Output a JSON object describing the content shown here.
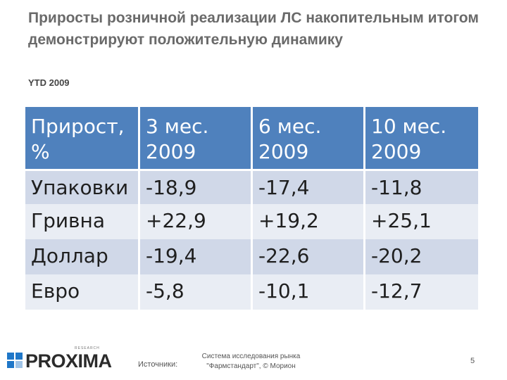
{
  "slide": {
    "title": "Приросты розничной реализации ЛС накопительным итогом демонстрируют положительную динамику",
    "subtitle": "YTD 2009"
  },
  "table": {
    "header": [
      {
        "line1": "Прирост,",
        "line2": "%"
      },
      {
        "line1": "3 мес.",
        "line2": "2009"
      },
      {
        "line1": "6 мес.",
        "line2": "2009"
      },
      {
        "line1": "10 мес.",
        "line2": "2009"
      }
    ],
    "rows": [
      {
        "label": "Упаковки",
        "values": [
          "-18,9",
          "-17,4",
          "-11,8"
        ]
      },
      {
        "label": "Гривна",
        "values": [
          "+22,9",
          "+19,2",
          "+25,1"
        ]
      },
      {
        "label": "Доллар",
        "values": [
          "-19,4",
          "-22,6",
          "-20,2"
        ]
      },
      {
        "label": "Евро",
        "values": [
          "-5,8",
          "-10,1",
          "-12,7"
        ]
      }
    ]
  },
  "footer": {
    "logo_text": "PROXIMA",
    "logo_tag": "RESEARCH",
    "sources_label": "Источники:",
    "sources_line1": "Система исследования рынка",
    "sources_line2": "\"Фармстандарт\", © Морион",
    "page_number": "5"
  },
  "colors": {
    "header_bg": "#4f81bd",
    "row_dark": "#d0d8e8",
    "row_light": "#e9edf4",
    "logo_blue": "#1f77c8"
  }
}
